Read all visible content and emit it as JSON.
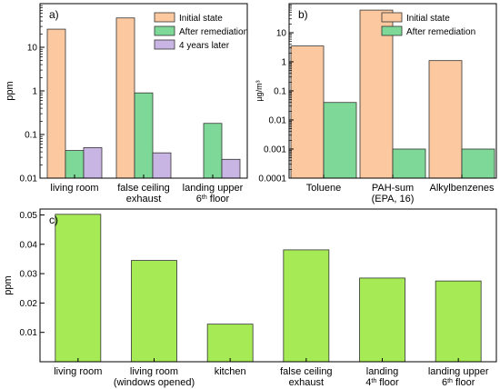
{
  "chart_data": [
    {
      "panel_label": "a)",
      "type": "bar",
      "scale": "log",
      "ylabel": "ppm",
      "ylim": [
        0.01,
        100
      ],
      "yticks": [
        "0.01",
        "0.1",
        "1",
        "10"
      ],
      "categories": [
        [
          "living room"
        ],
        [
          "false ceiling",
          "exhaust"
        ],
        [
          "landing upper",
          "6th floor"
        ]
      ],
      "series": [
        {
          "name": "Initial state",
          "color": "#fbc89f",
          "values": [
            26,
            47,
            null
          ]
        },
        {
          "name": "After remediation",
          "color": "#7ed897",
          "values": [
            0.043,
            0.9,
            0.18
          ]
        },
        {
          "name": "4 years later",
          "color": "#c9b5e3",
          "values": [
            0.05,
            0.038,
            0.027
          ]
        }
      ],
      "legend": "top-right"
    },
    {
      "panel_label": "b)",
      "type": "bar",
      "scale": "log",
      "ylabel": "µg/m³",
      "ylim": [
        0.0001,
        100
      ],
      "yticks": [
        "0.0001",
        "0.001",
        "0.01",
        "0.1",
        "1",
        "10"
      ],
      "categories": [
        [
          "Toluene"
        ],
        [
          "PAH-sum",
          "(EPA, 16)"
        ],
        [
          "Alkylbenzenes"
        ]
      ],
      "series": [
        {
          "name": "Initial state",
          "color": "#fbc89f",
          "values": [
            3.5,
            60,
            1.1
          ]
        },
        {
          "name": "After remediation",
          "color": "#7ed897",
          "values": [
            0.04,
            0.001,
            0.001
          ]
        }
      ],
      "legend": "top-right"
    },
    {
      "panel_label": "c)",
      "type": "bar",
      "scale": "linear",
      "ylabel": "ppm",
      "ylim": [
        0,
        0.052
      ],
      "yticks": [
        "0.01",
        "0.02",
        "0.03",
        "0.04",
        "0.05"
      ],
      "categories": [
        [
          "living room"
        ],
        [
          "living room",
          "(windows opened)"
        ],
        [
          "kitchen"
        ],
        [
          "false ceiling",
          "exhaust"
        ],
        [
          "landing",
          "4th floor"
        ],
        [
          "landing upper",
          "6th floor"
        ]
      ],
      "series": [
        {
          "name": "",
          "color": "#a6ea55",
          "values": [
            0.0502,
            0.0345,
            0.0128,
            0.0381,
            0.0285,
            0.0275
          ]
        }
      ]
    }
  ]
}
